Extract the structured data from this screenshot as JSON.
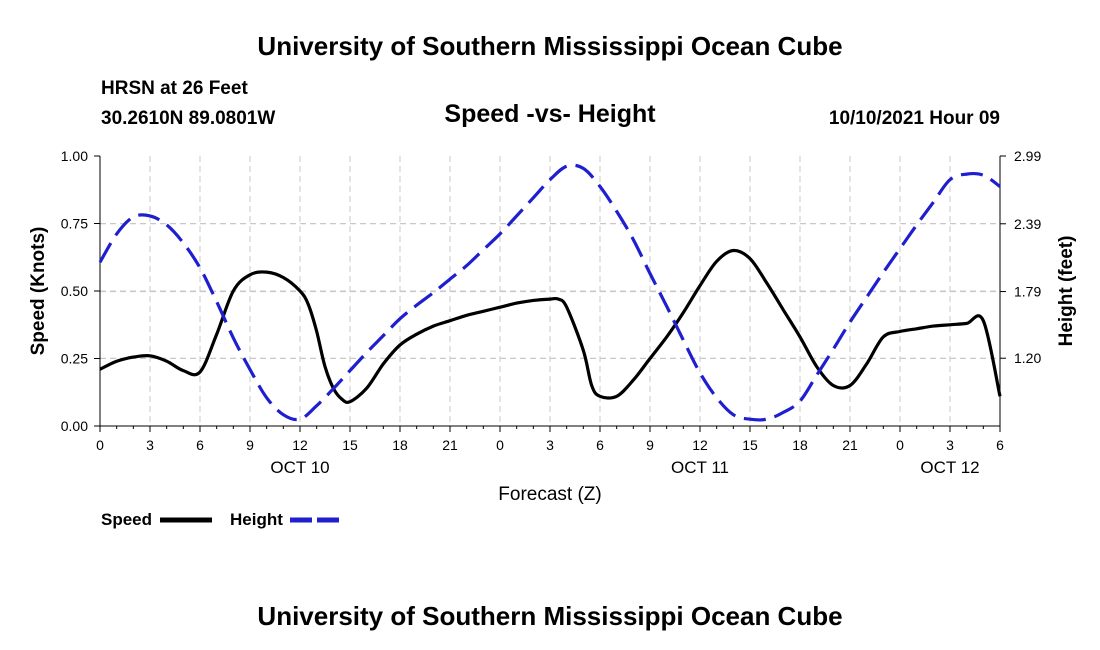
{
  "page": {
    "top_title": "University of Southern Mississippi Ocean Cube",
    "bottom_title": "University of Southern Mississippi Ocean Cube",
    "station": "HRSN at 26 Feet",
    "coords": "30.2610N  89.0801W",
    "datetime": "10/10/2021 Hour 09"
  },
  "chart_data": {
    "type": "line",
    "title": "Speed -vs- Height",
    "xlabel": "Forecast (Z)",
    "ylabel": "Speed (Knots)",
    "y2label": "Height (feet)",
    "x_range": [
      0,
      54
    ],
    "ylim": [
      0,
      1.0
    ],
    "y2lim": [
      0.6,
      2.99
    ],
    "grid": true,
    "x_ticks": [
      0,
      3,
      6,
      9,
      12,
      15,
      18,
      21,
      24,
      27,
      30,
      33,
      36,
      39,
      42,
      45,
      48,
      51,
      54
    ],
    "x_tick_labels": [
      "0",
      "3",
      "6",
      "9",
      "12",
      "15",
      "18",
      "21",
      "0",
      "3",
      "6",
      "9",
      "12",
      "15",
      "18",
      "21",
      "0",
      "3",
      "6"
    ],
    "date_labels": [
      {
        "x": 12,
        "label": "OCT 10"
      },
      {
        "x": 36,
        "label": "OCT 11"
      },
      {
        "x": 51,
        "label": "OCT 12"
      }
    ],
    "y_ticks": [
      0,
      0.25,
      0.5,
      0.75,
      1.0
    ],
    "y_tick_labels": [
      "0.00",
      "0.25",
      "0.50",
      "0.75",
      "1.00"
    ],
    "y2_ticks": [
      1.2,
      1.79,
      2.39,
      2.99
    ],
    "y2_tick_labels": [
      "1.20",
      "1.79",
      "2.39",
      "2.99"
    ],
    "legend": [
      {
        "name": "Speed",
        "color": "#000000",
        "dashed": false
      },
      {
        "name": "Height",
        "color": "#1f1fd0",
        "dashed": true
      }
    ],
    "series": [
      {
        "name": "Speed",
        "axis": "left",
        "color": "#000000",
        "dashed": false,
        "x": [
          0,
          1,
          2,
          3,
          4,
          5,
          6,
          7,
          8,
          9,
          10,
          11,
          12,
          12.5,
          13,
          13.5,
          14,
          14.5,
          15,
          16,
          17,
          18,
          19,
          20,
          21,
          22,
          23,
          24,
          25,
          26,
          27,
          27.5,
          28,
          29,
          29.5,
          30,
          31,
          32,
          33,
          34,
          35,
          36,
          37,
          38,
          39,
          40,
          41,
          42,
          43,
          44,
          45,
          46,
          47,
          48,
          49,
          50,
          51,
          52,
          53,
          54
        ],
        "values": [
          0.21,
          0.24,
          0.255,
          0.26,
          0.24,
          0.205,
          0.2,
          0.34,
          0.5,
          0.56,
          0.57,
          0.55,
          0.5,
          0.45,
          0.35,
          0.22,
          0.14,
          0.1,
          0.09,
          0.14,
          0.23,
          0.3,
          0.34,
          0.37,
          0.39,
          0.41,
          0.425,
          0.44,
          0.455,
          0.465,
          0.47,
          0.47,
          0.44,
          0.28,
          0.15,
          0.11,
          0.11,
          0.17,
          0.25,
          0.33,
          0.42,
          0.52,
          0.61,
          0.65,
          0.62,
          0.53,
          0.43,
          0.33,
          0.22,
          0.15,
          0.15,
          0.23,
          0.33,
          0.35,
          0.36,
          0.37,
          0.375,
          0.38,
          0.39,
          0.11
        ]
      },
      {
        "name": "Height",
        "axis": "right",
        "color": "#1f1fd0",
        "dashed": true,
        "x": [
          0,
          1,
          2,
          3,
          4,
          5,
          6,
          7,
          8,
          9,
          10,
          11,
          12,
          13,
          14,
          15,
          16,
          17,
          18,
          19,
          20,
          21,
          22,
          23,
          24,
          25,
          26,
          27,
          28,
          29,
          30,
          31,
          32,
          33,
          34,
          35,
          36,
          37,
          38,
          39,
          40,
          41,
          42,
          43,
          44,
          45,
          46,
          47,
          48,
          49,
          50,
          51,
          52,
          53,
          54
        ],
        "values": [
          2.05,
          2.3,
          2.45,
          2.46,
          2.38,
          2.22,
          2.0,
          1.7,
          1.38,
          1.1,
          0.85,
          0.7,
          0.66,
          0.78,
          0.93,
          1.09,
          1.25,
          1.4,
          1.55,
          1.67,
          1.78,
          1.9,
          2.02,
          2.16,
          2.3,
          2.46,
          2.62,
          2.78,
          2.9,
          2.88,
          2.72,
          2.5,
          2.25,
          1.95,
          1.66,
          1.36,
          1.07,
          0.85,
          0.7,
          0.66,
          0.66,
          0.72,
          0.82,
          1.05,
          1.28,
          1.52,
          1.74,
          1.96,
          2.17,
          2.38,
          2.58,
          2.78,
          2.83,
          2.82,
          2.72
        ]
      }
    ]
  }
}
